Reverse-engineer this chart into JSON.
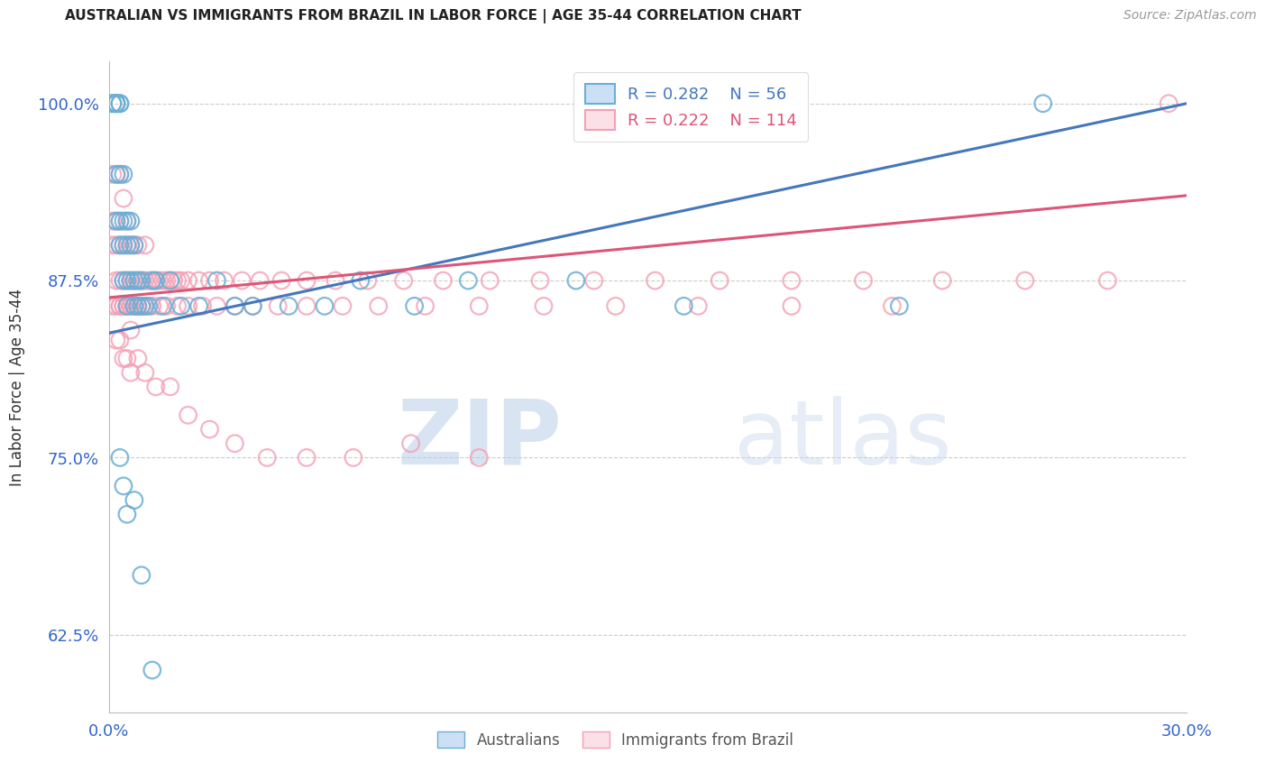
{
  "title": "AUSTRALIAN VS IMMIGRANTS FROM BRAZIL IN LABOR FORCE | AGE 35-44 CORRELATION CHART",
  "source": "Source: ZipAtlas.com",
  "ylabel": "In Labor Force | Age 35-44",
  "xlim": [
    0.0,
    0.3
  ],
  "ylim": [
    0.57,
    1.03
  ],
  "yticks": [
    0.625,
    0.75,
    0.875,
    1.0
  ],
  "ytick_labels": [
    "62.5%",
    "75.0%",
    "87.5%",
    "100.0%"
  ],
  "xticks": [
    0.0,
    0.05,
    0.1,
    0.15,
    0.2,
    0.25,
    0.3
  ],
  "xtick_labels": [
    "0.0%",
    "",
    "",
    "",
    "",
    "",
    "30.0%"
  ],
  "legend_r1": "0.282",
  "legend_n1": "56",
  "legend_r2": "0.222",
  "legend_n2": "114",
  "blue_color": "#6baed6",
  "pink_color": "#f4a0b5",
  "line_blue": "#4477bb",
  "line_pink": "#dd5577",
  "label1": "Australians",
  "label2": "Immigrants from Brazil",
  "watermark_zip": "ZIP",
  "watermark_atlas": "atlas",
  "aus_x": [
    0.001,
    0.001,
    0.002,
    0.002,
    0.002,
    0.002,
    0.002,
    0.003,
    0.003,
    0.003,
    0.003,
    0.003,
    0.004,
    0.004,
    0.004,
    0.004,
    0.005,
    0.005,
    0.005,
    0.005,
    0.006,
    0.006,
    0.006,
    0.007,
    0.007,
    0.007,
    0.008,
    0.008,
    0.009,
    0.009,
    0.01,
    0.011,
    0.012,
    0.013,
    0.015,
    0.017,
    0.02,
    0.025,
    0.03,
    0.035,
    0.04,
    0.05,
    0.06,
    0.07,
    0.085,
    0.1,
    0.13,
    0.16,
    0.22,
    0.26,
    0.003,
    0.004,
    0.005,
    0.007,
    0.009,
    0.012
  ],
  "aus_y": [
    1.0,
    1.0,
    1.0,
    1.0,
    1.0,
    0.95,
    0.917,
    1.0,
    1.0,
    0.95,
    0.917,
    0.9,
    0.95,
    0.917,
    0.9,
    0.875,
    0.917,
    0.9,
    0.875,
    0.857,
    0.917,
    0.9,
    0.875,
    0.9,
    0.875,
    0.857,
    0.875,
    0.857,
    0.875,
    0.857,
    0.857,
    0.857,
    0.875,
    0.875,
    0.857,
    0.875,
    0.857,
    0.857,
    0.875,
    0.857,
    0.857,
    0.857,
    0.857,
    0.875,
    0.857,
    0.875,
    0.875,
    0.857,
    0.857,
    1.0,
    0.75,
    0.73,
    0.71,
    0.72,
    0.667,
    0.6
  ],
  "bra_x": [
    0.001,
    0.001,
    0.001,
    0.002,
    0.002,
    0.002,
    0.002,
    0.003,
    0.003,
    0.003,
    0.003,
    0.003,
    0.004,
    0.004,
    0.004,
    0.004,
    0.005,
    0.005,
    0.005,
    0.005,
    0.006,
    0.006,
    0.006,
    0.006,
    0.007,
    0.007,
    0.007,
    0.008,
    0.008,
    0.008,
    0.009,
    0.009,
    0.01,
    0.01,
    0.011,
    0.012,
    0.013,
    0.014,
    0.015,
    0.016,
    0.017,
    0.018,
    0.019,
    0.02,
    0.022,
    0.025,
    0.028,
    0.032,
    0.037,
    0.042,
    0.048,
    0.055,
    0.063,
    0.072,
    0.082,
    0.093,
    0.106,
    0.12,
    0.135,
    0.152,
    0.17,
    0.19,
    0.21,
    0.232,
    0.255,
    0.278,
    0.295,
    0.001,
    0.002,
    0.003,
    0.004,
    0.005,
    0.006,
    0.007,
    0.008,
    0.009,
    0.01,
    0.012,
    0.014,
    0.016,
    0.019,
    0.022,
    0.026,
    0.03,
    0.035,
    0.04,
    0.047,
    0.055,
    0.065,
    0.075,
    0.088,
    0.103,
    0.121,
    0.141,
    0.164,
    0.19,
    0.218,
    0.002,
    0.003,
    0.004,
    0.005,
    0.006,
    0.008,
    0.01,
    0.013,
    0.017,
    0.022,
    0.028,
    0.035,
    0.044,
    0.055,
    0.068,
    0.084,
    0.103
  ],
  "bra_y": [
    0.95,
    0.917,
    0.9,
    0.95,
    0.917,
    0.9,
    0.875,
    0.95,
    0.917,
    0.9,
    0.875,
    0.857,
    0.933,
    0.9,
    0.875,
    0.857,
    0.917,
    0.9,
    0.875,
    0.857,
    0.9,
    0.875,
    0.857,
    0.84,
    0.9,
    0.875,
    0.857,
    0.9,
    0.875,
    0.857,
    0.875,
    0.857,
    0.9,
    0.875,
    0.875,
    0.875,
    0.875,
    0.875,
    0.875,
    0.875,
    0.875,
    0.875,
    0.875,
    0.875,
    0.875,
    0.875,
    0.875,
    0.875,
    0.875,
    0.875,
    0.875,
    0.875,
    0.875,
    0.875,
    0.875,
    0.875,
    0.875,
    0.875,
    0.875,
    0.875,
    0.875,
    0.875,
    0.875,
    0.875,
    0.875,
    0.875,
    1.0,
    0.857,
    0.857,
    0.857,
    0.857,
    0.857,
    0.857,
    0.857,
    0.857,
    0.857,
    0.857,
    0.857,
    0.857,
    0.857,
    0.857,
    0.857,
    0.857,
    0.857,
    0.857,
    0.857,
    0.857,
    0.857,
    0.857,
    0.857,
    0.857,
    0.857,
    0.857,
    0.857,
    0.857,
    0.857,
    0.857,
    0.833,
    0.833,
    0.82,
    0.82,
    0.81,
    0.82,
    0.81,
    0.8,
    0.8,
    0.78,
    0.77,
    0.76,
    0.75,
    0.75,
    0.75,
    0.76,
    0.75
  ]
}
